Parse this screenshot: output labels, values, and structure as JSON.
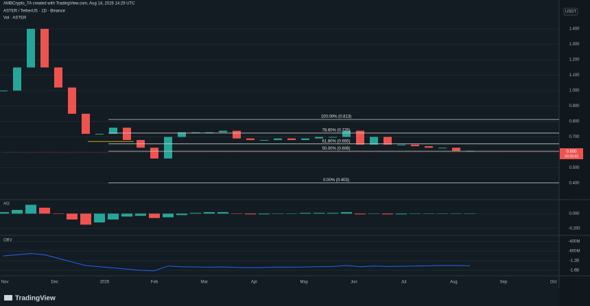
{
  "header": {
    "credit": "AMBCrypto_TA created with TradingView.com, Aug 14, 2026 14:29 UTC",
    "symbol": "ASTER / TetherUS · 1D · Binance",
    "volume_label": "Vol · ASTER",
    "currency": "USDT"
  },
  "chart_data": [
    {
      "type": "candlestick",
      "values": [
        1.0,
        1.15,
        1.4,
        1.15,
        1.02,
        0.85,
        0.72,
        0.72,
        0.76,
        0.68,
        0.63,
        0.56,
        0.7,
        0.73,
        0.73,
        0.73,
        0.74,
        0.69,
        0.68,
        0.68,
        0.69,
        0.68,
        0.69,
        0.7,
        0.7,
        0.74,
        0.65,
        0.7,
        0.65,
        0.65,
        0.64,
        0.63,
        0.63,
        0.61,
        0.61
      ],
      "up_color": "#26a69a",
      "down_color": "#ef5350",
      "ylim": [
        0.298,
        1.587
      ],
      "yticks": [
        {
          "value": 0.4,
          "label": "0.400"
        },
        {
          "value": 0.5,
          "label": "0.500"
        },
        {
          "value": 0.6,
          "label": "0.600"
        },
        {
          "value": 0.7,
          "label": "0.700"
        },
        {
          "value": 0.8,
          "label": "0.800"
        },
        {
          "value": 0.9,
          "label": "0.900"
        },
        {
          "value": 1.0,
          "label": "1.000"
        },
        {
          "value": 1.1,
          "label": "1.100"
        },
        {
          "value": 1.2,
          "label": "1.200"
        },
        {
          "value": 1.3,
          "label": "1.300"
        },
        {
          "value": 1.4,
          "label": "1.400"
        }
      ],
      "fib_levels": [
        {
          "value": 0.813,
          "label": "100.00% (0.813)"
        },
        {
          "value": 0.725,
          "label": "78.60% (0.725)"
        },
        {
          "value": 0.655,
          "label": "61.80% (0.655)"
        },
        {
          "value": 0.608,
          "label": "50.00% (0.608)"
        },
        {
          "value": 0.403,
          "label": "0.00% (0.403)"
        }
      ],
      "fib_color": "#c8c8c8",
      "support_line": {
        "value": 0.67,
        "color": "#d4a017"
      },
      "last_price": {
        "value": 0.6,
        "label": "0.600"
      },
      "countdown": "09:33:43",
      "xtick_labels": [
        "Nov",
        "Dec",
        "2026",
        "Feb",
        "Mar",
        "Apr",
        "May",
        "Jun",
        "Jul",
        "Aug",
        "Sep",
        "Oct"
      ]
    },
    {
      "type": "bar",
      "title": "AO",
      "values": [
        0.02,
        0.05,
        0.12,
        0.08,
        0.0,
        -0.08,
        -0.15,
        -0.12,
        -0.08,
        -0.04,
        -0.03,
        -0.06,
        -0.05,
        -0.02,
        0.01,
        0.02,
        0.02,
        0.0,
        -0.01,
        -0.01,
        0.0,
        0.0,
        0.01,
        0.01,
        0.01,
        0.02,
        -0.01,
        0.0,
        -0.01,
        -0.01,
        0.0,
        0.0,
        0.0,
        0.0,
        0.0
      ],
      "up_color": "#26a69a",
      "down_color": "#ef5350",
      "ylim": [
        -0.286,
        0.171
      ],
      "yticks": [
        {
          "value": 0,
          "label": "0.000"
        },
        {
          "value": -0.2,
          "label": "-0.200"
        }
      ]
    },
    {
      "type": "line",
      "title": "OBV",
      "values": [
        -1000000000,
        -950000000,
        -900000000,
        -950000000,
        -1100000000,
        -1250000000,
        -1400000000,
        -1450000000,
        -1500000000,
        -1550000000,
        -1600000000,
        -1620000000,
        -1420000000,
        -1450000000,
        -1460000000,
        -1470000000,
        -1460000000,
        -1480000000,
        -1490000000,
        -1480000000,
        -1470000000,
        -1470000000,
        -1460000000,
        -1450000000,
        -1440000000,
        -1400000000,
        -1450000000,
        -1420000000,
        -1440000000,
        -1430000000,
        -1420000000,
        -1410000000,
        -1400000000,
        -1400000000,
        -1410000000
      ],
      "color": "#2962ff",
      "ylim": [
        -1800000000,
        -200000000
      ],
      "yticks": [
        {
          "value": -400000000,
          "label": "-400M"
        },
        {
          "value": -800000000,
          "label": "-800M"
        },
        {
          "value": -1200000000,
          "label": "-1.2B"
        },
        {
          "value": -1600000000,
          "label": "-1.6B"
        }
      ]
    }
  ],
  "footer": {
    "brand": "TradingView"
  }
}
